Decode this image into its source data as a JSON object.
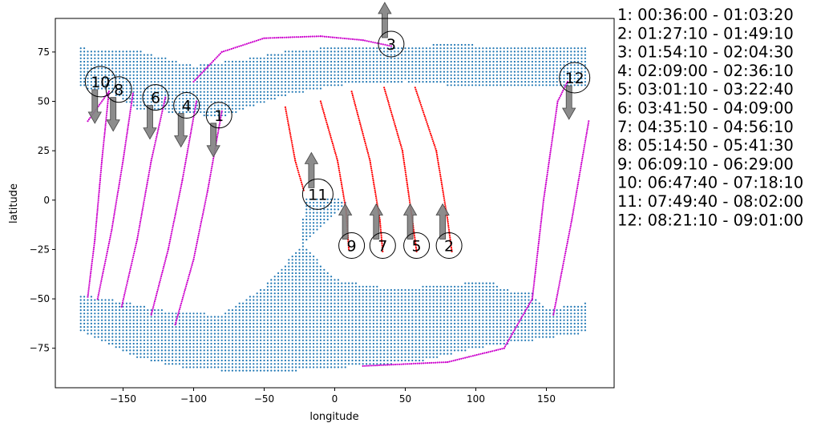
{
  "chart_data": {
    "type": "scatter",
    "title": "",
    "xlabel": "longitude",
    "ylabel": "latitude",
    "xlim": [
      -198,
      198
    ],
    "ylim": [
      -95,
      92
    ],
    "xticks": [
      -150,
      -100,
      -50,
      0,
      50,
      100,
      150
    ],
    "yticks": [
      -75,
      -50,
      -25,
      0,
      25,
      50,
      75
    ],
    "colors": {
      "land": "#1f77b4",
      "track_descending": "#ff0000",
      "track_ascending": "#cc00cc",
      "arrow": "#808080"
    },
    "land_regions": [
      {
        "name": "north",
        "polygon": [
          [
            -180,
            77
          ],
          [
            -140,
            76
          ],
          [
            -100,
            68
          ],
          [
            -60,
            72
          ],
          [
            -30,
            76
          ],
          [
            10,
            78
          ],
          [
            50,
            78
          ],
          [
            80,
            79
          ],
          [
            180,
            77
          ],
          [
            180,
            57
          ],
          [
            140,
            58
          ],
          [
            100,
            57
          ],
          [
            50,
            60
          ],
          [
            0,
            58
          ],
          [
            -40,
            52
          ],
          [
            -80,
            42
          ],
          [
            -110,
            44
          ],
          [
            -140,
            46
          ],
          [
            -160,
            55
          ],
          [
            -180,
            57
          ]
        ]
      },
      {
        "name": "south",
        "polygon": [
          [
            -180,
            -48
          ],
          [
            -160,
            -50
          ],
          [
            -120,
            -56
          ],
          [
            -80,
            -58
          ],
          [
            -50,
            -44
          ],
          [
            -20,
            -20
          ],
          [
            10,
            0
          ],
          [
            -20,
            2
          ],
          [
            -25,
            -20
          ],
          [
            0,
            -40
          ],
          [
            40,
            -45
          ],
          [
            110,
            -41
          ],
          [
            120,
            -45
          ],
          [
            140,
            -47
          ],
          [
            150,
            -55
          ],
          [
            180,
            -52
          ],
          [
            180,
            -67
          ],
          [
            150,
            -70
          ],
          [
            100,
            -75
          ],
          [
            60,
            -82
          ],
          [
            -40,
            -87
          ],
          [
            -100,
            -86
          ],
          [
            -140,
            -80
          ],
          [
            -180,
            -66
          ]
        ]
      }
    ],
    "tracks": [
      {
        "id": "1",
        "color": "ascending",
        "points": [
          [
            -113,
            -63
          ],
          [
            -100,
            -30
          ],
          [
            -90,
            5
          ],
          [
            -80,
            45
          ]
        ]
      },
      {
        "id": "2",
        "color": "descending",
        "points": [
          [
            57,
            57
          ],
          [
            72,
            25
          ],
          [
            80,
            -10
          ],
          [
            83,
            -26
          ]
        ]
      },
      {
        "id": "3",
        "color": "ascending",
        "points": [
          [
            -100,
            60
          ],
          [
            -80,
            75
          ],
          [
            -50,
            82
          ],
          [
            -10,
            83
          ],
          [
            20,
            81
          ],
          [
            40,
            78
          ]
        ]
      },
      {
        "id": "4",
        "color": "ascending",
        "points": [
          [
            -130,
            -58
          ],
          [
            -118,
            -25
          ],
          [
            -108,
            10
          ],
          [
            -98,
            50
          ]
        ]
      },
      {
        "id": "5",
        "color": "descending",
        "points": [
          [
            35,
            57
          ],
          [
            48,
            25
          ],
          [
            55,
            -10
          ],
          [
            58,
            -26
          ]
        ]
      },
      {
        "id": "6",
        "color": "ascending",
        "points": [
          [
            -151,
            -54
          ],
          [
            -140,
            -20
          ],
          [
            -130,
            20
          ],
          [
            -120,
            52
          ]
        ]
      },
      {
        "id": "7",
        "color": "descending",
        "points": [
          [
            12,
            55
          ],
          [
            25,
            20
          ],
          [
            32,
            -10
          ],
          [
            34,
            -26
          ]
        ]
      },
      {
        "id": "8",
        "color": "ascending",
        "points": [
          [
            -168,
            -50
          ],
          [
            -158,
            -15
          ],
          [
            -150,
            20
          ],
          [
            -143,
            54
          ]
        ]
      },
      {
        "id": "9",
        "color": "descending",
        "points": [
          [
            -10,
            50
          ],
          [
            2,
            20
          ],
          [
            8,
            -5
          ],
          [
            10,
            -25
          ]
        ]
      },
      {
        "id": "10",
        "color": "ascending",
        "points": [
          [
            -175,
            -49
          ],
          [
            -170,
            -20
          ],
          [
            -165,
            20
          ],
          [
            -160,
            55
          ],
          [
            -175,
            40
          ]
        ]
      },
      {
        "id": "11",
        "color": "descending",
        "points": [
          [
            -35,
            47
          ],
          [
            -28,
            20
          ],
          [
            -22,
            5
          ]
        ]
      },
      {
        "id": "12",
        "color": "ascending",
        "points": [
          [
            20,
            -84
          ],
          [
            80,
            -82
          ],
          [
            120,
            -75
          ],
          [
            140,
            -50
          ],
          [
            148,
            0
          ],
          [
            158,
            50
          ],
          [
            165,
            60
          ]
        ]
      },
      {
        "id": "12b",
        "color": "ascending",
        "points": [
          [
            155,
            -58
          ],
          [
            168,
            -10
          ],
          [
            180,
            40
          ]
        ]
      }
    ],
    "annotations": [
      {
        "label": "1",
        "x": -82,
        "y": 43,
        "arrow": "down"
      },
      {
        "label": "2",
        "x": 81,
        "y": -23,
        "arrow": "up"
      },
      {
        "label": "3",
        "x": 40,
        "y": 79,
        "arrow": "up"
      },
      {
        "label": "4",
        "x": -105,
        "y": 48,
        "arrow": "down"
      },
      {
        "label": "5",
        "x": 58,
        "y": -23,
        "arrow": "up"
      },
      {
        "label": "6",
        "x": -127,
        "y": 52,
        "arrow": "down"
      },
      {
        "label": "7",
        "x": 34,
        "y": -23,
        "arrow": "up"
      },
      {
        "label": "8",
        "x": -153,
        "y": 56,
        "arrow": "down"
      },
      {
        "label": "9",
        "x": 12,
        "y": -23,
        "arrow": "up"
      },
      {
        "label": "10",
        "x": -166,
        "y": 60,
        "arrow": "down"
      },
      {
        "label": "11",
        "x": -12,
        "y": 3,
        "arrow": "up"
      },
      {
        "label": "12",
        "x": 170,
        "y": 62,
        "arrow": "down"
      }
    ],
    "legend": [
      "1:  00:36:00 - 01:03:20",
      "2:  01:27:10 - 01:49:10",
      "3:  01:54:10 - 02:04:30",
      "4:  02:09:00 - 02:36:10",
      "5:  03:01:10 - 03:22:40",
      "6:  03:41:50 - 04:09:00",
      "7:  04:35:10 - 04:56:10",
      "8:  05:14:50 - 05:41:30",
      "9:  06:09:10 - 06:29:00",
      "10:  06:47:40 - 07:18:10",
      "11:  07:49:40 - 08:02:00",
      "12:  08:21:10 - 09:01:00"
    ]
  }
}
